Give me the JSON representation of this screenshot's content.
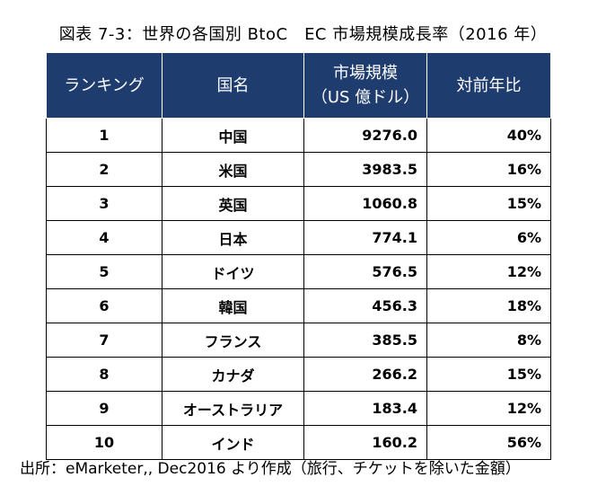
{
  "title": "図表 7-3：世界の各国別 BtoC　EC 市場規模成長率（2016 年）",
  "table": {
    "headers": {
      "ranking": "ランキング",
      "country": "国名",
      "market_size_line1": "市場規模",
      "market_size_line2": "（US 億ドル）",
      "growth": "対前年比"
    },
    "rows": [
      {
        "rank": "1",
        "country": "中国",
        "size": "9276.0",
        "growth": "40%"
      },
      {
        "rank": "2",
        "country": "米国",
        "size": "3983.5",
        "growth": "16%"
      },
      {
        "rank": "3",
        "country": "英国",
        "size": "1060.8",
        "growth": "15%"
      },
      {
        "rank": "4",
        "country": "日本",
        "size": "774.1",
        "growth": "6%"
      },
      {
        "rank": "5",
        "country": "ドイツ",
        "size": "576.5",
        "growth": "12%"
      },
      {
        "rank": "6",
        "country": "韓国",
        "size": "456.3",
        "growth": "18%"
      },
      {
        "rank": "7",
        "country": "フランス",
        "size": "385.5",
        "growth": "8%"
      },
      {
        "rank": "8",
        "country": "カナダ",
        "size": "266.2",
        "growth": "15%"
      },
      {
        "rank": "9",
        "country": "オーストラリア",
        "size": "183.4",
        "growth": "12%"
      },
      {
        "rank": "10",
        "country": "インド",
        "size": "160.2",
        "growth": "56%"
      }
    ]
  },
  "source": "出所：eMarketer,, Dec2016 より作成（旅行、チケットを除いた金額）",
  "colors": {
    "header_bg": "#1f3c6e",
    "header_text": "#ffffff"
  }
}
